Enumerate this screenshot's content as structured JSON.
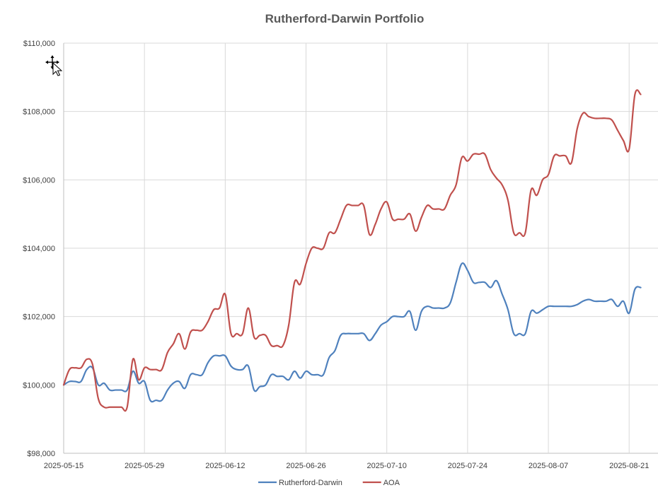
{
  "chart_data": {
    "type": "line",
    "title": "Rutherford-Darwin Portfolio",
    "xlabel": "",
    "ylabel": "",
    "ylim": [
      98000,
      110000
    ],
    "y_ticks": [
      98000,
      100000,
      102000,
      104000,
      106000,
      108000,
      110000
    ],
    "y_tick_labels": [
      "$98,000",
      "$100,000",
      "$102,000",
      "$104,000",
      "$106,000",
      "$108,000",
      "$110,000"
    ],
    "x_ticks": [
      "2025-05-15",
      "2025-05-29",
      "2025-06-12",
      "2025-06-26",
      "2025-07-10",
      "2025-07-24",
      "2025-08-07",
      "2025-08-21"
    ],
    "xlim": [
      "2025-05-15",
      "2025-08-26"
    ],
    "grid": true,
    "legend_position": "bottom",
    "series": [
      {
        "name": "Rutherford-Darwin",
        "color": "#4f81bd",
        "points": [
          [
            "2025-05-15",
            100000
          ],
          [
            "2025-05-16",
            100100
          ],
          [
            "2025-05-17",
            100100
          ],
          [
            "2025-05-18",
            100100
          ],
          [
            "2025-05-19",
            100450
          ],
          [
            "2025-05-20",
            100500
          ],
          [
            "2025-05-21",
            100000
          ],
          [
            "2025-05-22",
            100050
          ],
          [
            "2025-05-23",
            99850
          ],
          [
            "2025-05-24",
            99850
          ],
          [
            "2025-05-25",
            99850
          ],
          [
            "2025-05-26",
            99850
          ],
          [
            "2025-05-27",
            100400
          ],
          [
            "2025-05-28",
            100050
          ],
          [
            "2025-05-29",
            100100
          ],
          [
            "2025-05-30",
            99550
          ],
          [
            "2025-05-31",
            99550
          ],
          [
            "2025-06-01",
            99550
          ],
          [
            "2025-06-02",
            99850
          ],
          [
            "2025-06-03",
            100050
          ],
          [
            "2025-06-04",
            100100
          ],
          [
            "2025-06-05",
            99900
          ],
          [
            "2025-06-06",
            100300
          ],
          [
            "2025-06-07",
            100300
          ],
          [
            "2025-06-08",
            100300
          ],
          [
            "2025-06-09",
            100650
          ],
          [
            "2025-06-10",
            100850
          ],
          [
            "2025-06-11",
            100850
          ],
          [
            "2025-06-12",
            100850
          ],
          [
            "2025-06-13",
            100550
          ],
          [
            "2025-06-14",
            100450
          ],
          [
            "2025-06-15",
            100450
          ],
          [
            "2025-06-16",
            100550
          ],
          [
            "2025-06-17",
            99850
          ],
          [
            "2025-06-18",
            99950
          ],
          [
            "2025-06-19",
            100000
          ],
          [
            "2025-06-20",
            100300
          ],
          [
            "2025-06-21",
            100250
          ],
          [
            "2025-06-22",
            100250
          ],
          [
            "2025-06-23",
            100150
          ],
          [
            "2025-06-24",
            100400
          ],
          [
            "2025-06-25",
            100200
          ],
          [
            "2025-06-26",
            100400
          ],
          [
            "2025-06-27",
            100300
          ],
          [
            "2025-06-28",
            100300
          ],
          [
            "2025-06-29",
            100300
          ],
          [
            "2025-06-30",
            100800
          ],
          [
            "2025-07-01",
            101000
          ],
          [
            "2025-07-02",
            101450
          ],
          [
            "2025-07-03",
            101500
          ],
          [
            "2025-07-04",
            101500
          ],
          [
            "2025-07-05",
            101500
          ],
          [
            "2025-07-06",
            101500
          ],
          [
            "2025-07-07",
            101300
          ],
          [
            "2025-07-08",
            101500
          ],
          [
            "2025-07-09",
            101750
          ],
          [
            "2025-07-10",
            101850
          ],
          [
            "2025-07-11",
            102000
          ],
          [
            "2025-07-12",
            102000
          ],
          [
            "2025-07-13",
            102000
          ],
          [
            "2025-07-14",
            102150
          ],
          [
            "2025-07-15",
            101600
          ],
          [
            "2025-07-16",
            102150
          ],
          [
            "2025-07-17",
            102300
          ],
          [
            "2025-07-18",
            102250
          ],
          [
            "2025-07-19",
            102250
          ],
          [
            "2025-07-20",
            102250
          ],
          [
            "2025-07-21",
            102400
          ],
          [
            "2025-07-22",
            103000
          ],
          [
            "2025-07-23",
            103550
          ],
          [
            "2025-07-24",
            103350
          ],
          [
            "2025-07-25",
            103000
          ],
          [
            "2025-07-26",
            103000
          ],
          [
            "2025-07-27",
            103000
          ],
          [
            "2025-07-28",
            102850
          ],
          [
            "2025-07-29",
            103050
          ],
          [
            "2025-07-30",
            102650
          ],
          [
            "2025-07-31",
            102200
          ],
          [
            "2025-08-01",
            101500
          ],
          [
            "2025-08-02",
            101500
          ],
          [
            "2025-08-03",
            101500
          ],
          [
            "2025-08-04",
            102150
          ],
          [
            "2025-08-05",
            102100
          ],
          [
            "2025-08-06",
            102200
          ],
          [
            "2025-08-07",
            102300
          ],
          [
            "2025-08-08",
            102300
          ],
          [
            "2025-08-09",
            102300
          ],
          [
            "2025-08-10",
            102300
          ],
          [
            "2025-08-11",
            102300
          ],
          [
            "2025-08-12",
            102350
          ],
          [
            "2025-08-13",
            102450
          ],
          [
            "2025-08-14",
            102500
          ],
          [
            "2025-08-15",
            102450
          ],
          [
            "2025-08-16",
            102450
          ],
          [
            "2025-08-17",
            102450
          ],
          [
            "2025-08-18",
            102500
          ],
          [
            "2025-08-19",
            102300
          ],
          [
            "2025-08-20",
            102450
          ],
          [
            "2025-08-21",
            102100
          ],
          [
            "2025-08-22",
            102800
          ],
          [
            "2025-08-23",
            102850
          ]
        ]
      },
      {
        "name": "AOA",
        "color": "#c0504d",
        "points": [
          [
            "2025-05-15",
            100000
          ],
          [
            "2025-05-16",
            100450
          ],
          [
            "2025-05-17",
            100500
          ],
          [
            "2025-05-18",
            100500
          ],
          [
            "2025-05-19",
            100750
          ],
          [
            "2025-05-20",
            100600
          ],
          [
            "2025-05-21",
            99600
          ],
          [
            "2025-05-22",
            99350
          ],
          [
            "2025-05-23",
            99350
          ],
          [
            "2025-05-24",
            99350
          ],
          [
            "2025-05-25",
            99350
          ],
          [
            "2025-05-26",
            99350
          ],
          [
            "2025-05-27",
            100750
          ],
          [
            "2025-05-28",
            100150
          ],
          [
            "2025-05-29",
            100500
          ],
          [
            "2025-05-30",
            100450
          ],
          [
            "2025-05-31",
            100450
          ],
          [
            "2025-06-01",
            100450
          ],
          [
            "2025-06-02",
            100950
          ],
          [
            "2025-06-03",
            101200
          ],
          [
            "2025-06-04",
            101500
          ],
          [
            "2025-06-05",
            101050
          ],
          [
            "2025-06-06",
            101550
          ],
          [
            "2025-06-07",
            101600
          ],
          [
            "2025-06-08",
            101600
          ],
          [
            "2025-06-09",
            101850
          ],
          [
            "2025-06-10",
            102200
          ],
          [
            "2025-06-11",
            102250
          ],
          [
            "2025-06-12",
            102650
          ],
          [
            "2025-06-13",
            101500
          ],
          [
            "2025-06-14",
            101500
          ],
          [
            "2025-06-15",
            101500
          ],
          [
            "2025-06-16",
            102250
          ],
          [
            "2025-06-17",
            101400
          ],
          [
            "2025-06-18",
            101450
          ],
          [
            "2025-06-19",
            101450
          ],
          [
            "2025-06-20",
            101150
          ],
          [
            "2025-06-21",
            101150
          ],
          [
            "2025-06-22",
            101150
          ],
          [
            "2025-06-23",
            101750
          ],
          [
            "2025-06-24",
            103000
          ],
          [
            "2025-06-25",
            102950
          ],
          [
            "2025-06-26",
            103550
          ],
          [
            "2025-06-27",
            104000
          ],
          [
            "2025-06-28",
            104000
          ],
          [
            "2025-06-29",
            104000
          ],
          [
            "2025-06-30",
            104450
          ],
          [
            "2025-07-01",
            104450
          ],
          [
            "2025-07-02",
            104850
          ],
          [
            "2025-07-03",
            105250
          ],
          [
            "2025-07-04",
            105250
          ],
          [
            "2025-07-05",
            105250
          ],
          [
            "2025-07-06",
            105250
          ],
          [
            "2025-07-07",
            104400
          ],
          [
            "2025-07-08",
            104700
          ],
          [
            "2025-07-09",
            105150
          ],
          [
            "2025-07-10",
            105350
          ],
          [
            "2025-07-11",
            104850
          ],
          [
            "2025-07-12",
            104850
          ],
          [
            "2025-07-13",
            104850
          ],
          [
            "2025-07-14",
            105000
          ],
          [
            "2025-07-15",
            104500
          ],
          [
            "2025-07-16",
            104900
          ],
          [
            "2025-07-17",
            105250
          ],
          [
            "2025-07-18",
            105150
          ],
          [
            "2025-07-19",
            105150
          ],
          [
            "2025-07-20",
            105150
          ],
          [
            "2025-07-21",
            105550
          ],
          [
            "2025-07-22",
            105850
          ],
          [
            "2025-07-23",
            106650
          ],
          [
            "2025-07-24",
            106550
          ],
          [
            "2025-07-25",
            106750
          ],
          [
            "2025-07-26",
            106750
          ],
          [
            "2025-07-27",
            106750
          ],
          [
            "2025-07-28",
            106300
          ],
          [
            "2025-07-29",
            106050
          ],
          [
            "2025-07-30",
            105850
          ],
          [
            "2025-07-31",
            105400
          ],
          [
            "2025-08-01",
            104450
          ],
          [
            "2025-08-02",
            104450
          ],
          [
            "2025-08-03",
            104450
          ],
          [
            "2025-08-04",
            105700
          ],
          [
            "2025-08-05",
            105550
          ],
          [
            "2025-08-06",
            106000
          ],
          [
            "2025-08-07",
            106150
          ],
          [
            "2025-08-08",
            106700
          ],
          [
            "2025-08-09",
            106700
          ],
          [
            "2025-08-10",
            106700
          ],
          [
            "2025-08-11",
            106500
          ],
          [
            "2025-08-12",
            107500
          ],
          [
            "2025-08-13",
            107950
          ],
          [
            "2025-08-14",
            107850
          ],
          [
            "2025-08-15",
            107800
          ],
          [
            "2025-08-16",
            107800
          ],
          [
            "2025-08-17",
            107800
          ],
          [
            "2025-08-18",
            107750
          ],
          [
            "2025-08-19",
            107450
          ],
          [
            "2025-08-20",
            107150
          ],
          [
            "2025-08-21",
            106900
          ],
          [
            "2025-08-22",
            108500
          ],
          [
            "2025-08-23",
            108500
          ]
        ]
      }
    ]
  }
}
